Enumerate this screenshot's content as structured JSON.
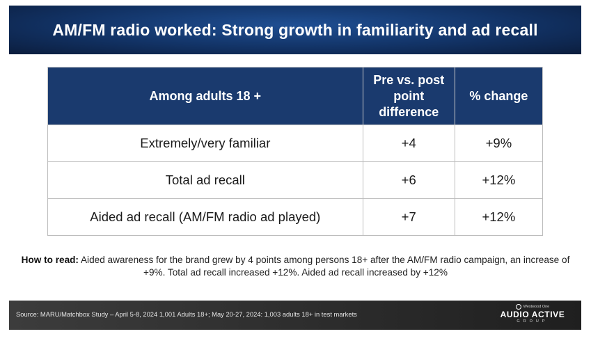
{
  "title": "AM/FM radio worked: Strong growth in familiarity and ad recall",
  "table": {
    "headers": [
      "Among adults 18 +",
      "Pre vs. post point difference",
      "% change"
    ],
    "rows": [
      [
        "Extremely/very familiar",
        "+4",
        "+9%"
      ],
      [
        "Total ad recall",
        "+6",
        "+12%"
      ],
      [
        "Aided ad recall (AM/FM radio ad played)",
        "+7",
        "+12%"
      ]
    ]
  },
  "how_to_read": {
    "label": "How to read:",
    "text": " Aided awareness for the brand grew by 4 points among persons 18+ after the AM/FM radio campaign, an increase of +9%. Total ad recall increased +12%. Aided ad recall increased by +12%"
  },
  "footer": {
    "source": "Source: MARU/Matchbox Study – April 5-8, 2024 1,001 Adults 18+; May 20-27, 2024: 1,003 adults 18+ in test markets",
    "logo_top": "Westwood One",
    "logo_main": "AUDIO ACTIVE",
    "logo_sub": "GROUP"
  },
  "colors": {
    "title_bar": "#123366",
    "table_header": "#1a3a6e",
    "footer_bar": "#2b2b2b"
  }
}
